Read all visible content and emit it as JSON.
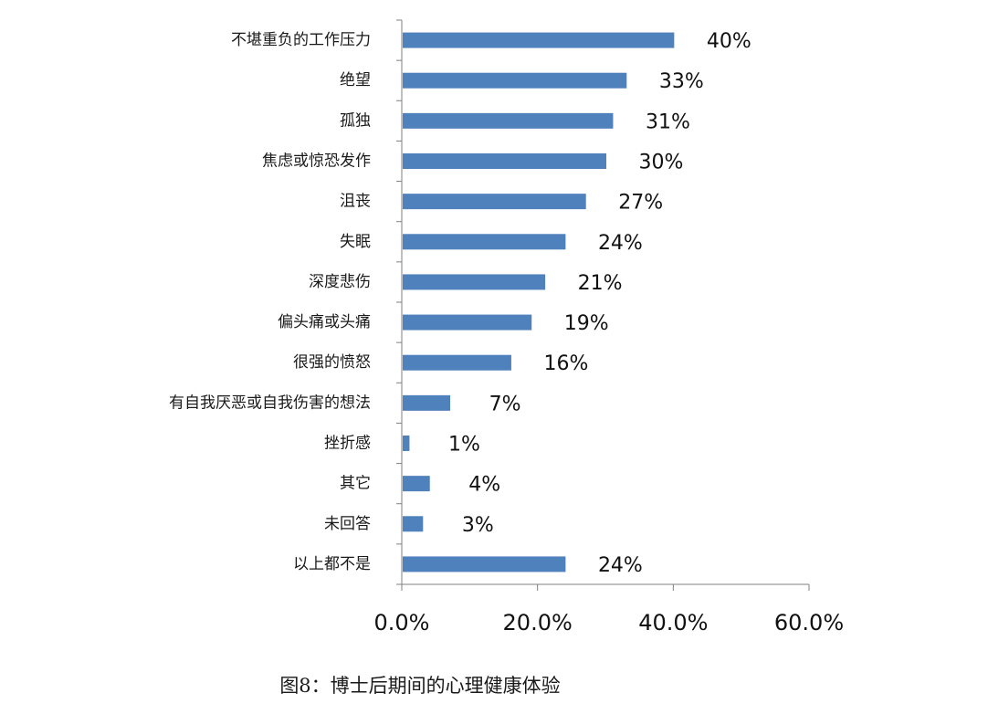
{
  "chart_data": {
    "type": "bar",
    "orientation": "horizontal",
    "categories": [
      "不堪重负的工作压力",
      "绝望",
      "孤独",
      "焦虑或惊恐发作",
      "沮丧",
      "失眠",
      "深度悲伤",
      "偏头痛或头痛",
      "很强的愤怒",
      "有自我厌恶或自我伤害的想法",
      "挫折感",
      "其它",
      "未回答",
      "以上都不是"
    ],
    "values": [
      40,
      33,
      31,
      30,
      27,
      24,
      21,
      19,
      16,
      7,
      1,
      4,
      3,
      24
    ],
    "value_labels": [
      "40%",
      "33%",
      "31%",
      "30%",
      "27%",
      "24%",
      "21%",
      "19%",
      "16%",
      "7%",
      "1%",
      "4%",
      "3%",
      "24%"
    ],
    "xlim": [
      0,
      60
    ],
    "xticks": [
      0,
      20,
      40,
      60
    ],
    "xtick_labels": [
      "0.0%",
      "20.0%",
      "40.0%",
      "60.0%"
    ],
    "bar_color": "#4f81bd",
    "grid": false,
    "legend": "none"
  },
  "caption": "图8：博士后期间的心理健康体验"
}
